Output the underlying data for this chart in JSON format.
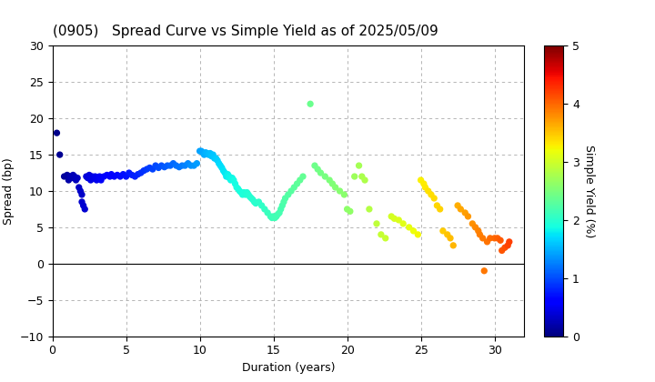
{
  "title": "(0905)   Spread Curve vs Simple Yield as of 2025/05/09",
  "xlabel": "Duration (years)",
  "ylabel": "Spread (bp)",
  "colorbar_label": "Simple Yield (%)",
  "xlim": [
    0,
    32
  ],
  "ylim": [
    -10,
    30
  ],
  "yticks": [
    -10,
    -5,
    0,
    5,
    10,
    15,
    20,
    25,
    30
  ],
  "xticks": [
    0,
    5,
    10,
    15,
    20,
    25,
    30
  ],
  "colorbar_ticks": [
    0,
    1,
    2,
    3,
    4,
    5
  ],
  "colormap": "jet",
  "color_vmin": 0,
  "color_vmax": 5,
  "points": [
    [
      0.3,
      18.0,
      0.05
    ],
    [
      0.5,
      15.0,
      0.08
    ],
    [
      0.8,
      12.0,
      0.12
    ],
    [
      1.0,
      12.2,
      0.15
    ],
    [
      1.1,
      11.5,
      0.18
    ],
    [
      1.2,
      12.0,
      0.2
    ],
    [
      1.3,
      11.8,
      0.22
    ],
    [
      1.4,
      12.2,
      0.24
    ],
    [
      1.5,
      12.0,
      0.25
    ],
    [
      1.6,
      11.5,
      0.27
    ],
    [
      1.7,
      11.8,
      0.28
    ],
    [
      1.8,
      10.5,
      0.3
    ],
    [
      1.9,
      10.0,
      0.32
    ],
    [
      2.0,
      9.5,
      0.33
    ],
    [
      2.0,
      8.5,
      0.35
    ],
    [
      2.1,
      8.0,
      0.36
    ],
    [
      2.2,
      7.5,
      0.37
    ],
    [
      2.3,
      12.0,
      0.38
    ],
    [
      2.4,
      11.8,
      0.4
    ],
    [
      2.5,
      12.2,
      0.42
    ],
    [
      2.6,
      11.5,
      0.43
    ],
    [
      2.7,
      12.0,
      0.44
    ],
    [
      2.8,
      11.8,
      0.46
    ],
    [
      2.9,
      12.0,
      0.47
    ],
    [
      3.0,
      11.5,
      0.48
    ],
    [
      3.1,
      11.8,
      0.5
    ],
    [
      3.2,
      12.0,
      0.52
    ],
    [
      3.3,
      11.5,
      0.53
    ],
    [
      3.5,
      12.0,
      0.55
    ],
    [
      3.7,
      12.2,
      0.57
    ],
    [
      3.9,
      12.0,
      0.6
    ],
    [
      4.0,
      12.3,
      0.62
    ],
    [
      4.2,
      12.0,
      0.64
    ],
    [
      4.4,
      12.2,
      0.66
    ],
    [
      4.6,
      12.0,
      0.68
    ],
    [
      4.8,
      12.3,
      0.7
    ],
    [
      5.0,
      12.0,
      0.72
    ],
    [
      5.2,
      12.5,
      0.75
    ],
    [
      5.4,
      12.2,
      0.77
    ],
    [
      5.6,
      12.0,
      0.8
    ],
    [
      5.8,
      12.3,
      0.82
    ],
    [
      6.0,
      12.5,
      0.85
    ],
    [
      6.2,
      12.8,
      0.87
    ],
    [
      6.4,
      13.0,
      0.9
    ],
    [
      6.6,
      13.2,
      0.93
    ],
    [
      6.8,
      13.0,
      0.95
    ],
    [
      7.0,
      13.5,
      0.98
    ],
    [
      7.2,
      13.2,
      1.0
    ],
    [
      7.4,
      13.5,
      1.03
    ],
    [
      7.6,
      13.3,
      1.06
    ],
    [
      7.8,
      13.5,
      1.09
    ],
    [
      8.0,
      13.5,
      1.12
    ],
    [
      8.2,
      13.8,
      1.15
    ],
    [
      8.4,
      13.5,
      1.18
    ],
    [
      8.6,
      13.3,
      1.2
    ],
    [
      8.8,
      13.5,
      1.23
    ],
    [
      9.0,
      13.5,
      1.26
    ],
    [
      9.2,
      13.8,
      1.3
    ],
    [
      9.4,
      13.5,
      1.33
    ],
    [
      9.6,
      13.5,
      1.36
    ],
    [
      9.8,
      13.8,
      1.39
    ],
    [
      10.0,
      15.5,
      1.42
    ],
    [
      10.1,
      15.5,
      1.44
    ],
    [
      10.2,
      15.3,
      1.46
    ],
    [
      10.3,
      15.0,
      1.48
    ],
    [
      10.4,
      15.3,
      1.5
    ],
    [
      10.5,
      15.2,
      1.52
    ],
    [
      10.6,
      15.0,
      1.54
    ],
    [
      10.7,
      15.2,
      1.56
    ],
    [
      10.8,
      14.8,
      1.58
    ],
    [
      10.9,
      15.0,
      1.6
    ],
    [
      11.0,
      14.5,
      1.62
    ],
    [
      11.1,
      14.5,
      1.64
    ],
    [
      11.2,
      14.2,
      1.66
    ],
    [
      11.3,
      13.8,
      1.68
    ],
    [
      11.4,
      13.5,
      1.7
    ],
    [
      11.5,
      13.2,
      1.72
    ],
    [
      11.6,
      12.8,
      1.74
    ],
    [
      11.7,
      12.5,
      1.76
    ],
    [
      11.8,
      12.0,
      1.78
    ],
    [
      11.9,
      12.3,
      1.8
    ],
    [
      12.0,
      12.0,
      1.82
    ],
    [
      12.0,
      11.8,
      1.83
    ],
    [
      12.1,
      11.5,
      1.84
    ],
    [
      12.2,
      11.8,
      1.85
    ],
    [
      12.3,
      11.5,
      1.86
    ],
    [
      12.4,
      11.0,
      1.87
    ],
    [
      12.5,
      10.5,
      1.88
    ],
    [
      12.6,
      10.3,
      1.89
    ],
    [
      12.7,
      10.0,
      1.9
    ],
    [
      12.8,
      9.8,
      1.91
    ],
    [
      12.9,
      9.5,
      1.92
    ],
    [
      13.0,
      9.8,
      1.93
    ],
    [
      13.1,
      9.5,
      1.94
    ],
    [
      13.2,
      9.8,
      1.95
    ],
    [
      13.3,
      9.5,
      1.96
    ],
    [
      13.4,
      9.2,
      1.97
    ],
    [
      13.5,
      9.0,
      1.98
    ],
    [
      13.6,
      8.8,
      1.99
    ],
    [
      13.7,
      8.5,
      2.0
    ],
    [
      13.8,
      8.3,
      2.01
    ],
    [
      14.0,
      8.5,
      2.03
    ],
    [
      14.2,
      8.0,
      2.05
    ],
    [
      14.4,
      7.5,
      2.07
    ],
    [
      14.6,
      7.0,
      2.09
    ],
    [
      14.8,
      6.5,
      2.11
    ],
    [
      14.9,
      6.3,
      2.12
    ],
    [
      15.0,
      6.5,
      2.13
    ],
    [
      15.1,
      6.3,
      2.14
    ],
    [
      15.2,
      6.5,
      2.15
    ],
    [
      15.3,
      6.8,
      2.16
    ],
    [
      15.4,
      7.0,
      2.17
    ],
    [
      15.5,
      7.5,
      2.18
    ],
    [
      15.6,
      8.0,
      2.2
    ],
    [
      15.7,
      8.5,
      2.22
    ],
    [
      15.8,
      9.0,
      2.24
    ],
    [
      16.0,
      9.5,
      2.26
    ],
    [
      16.2,
      10.0,
      2.28
    ],
    [
      16.4,
      10.5,
      2.3
    ],
    [
      16.6,
      11.0,
      2.32
    ],
    [
      16.8,
      11.5,
      2.34
    ],
    [
      17.0,
      12.0,
      2.36
    ],
    [
      17.5,
      22.0,
      2.4
    ],
    [
      17.8,
      13.5,
      2.42
    ],
    [
      18.0,
      13.0,
      2.44
    ],
    [
      18.2,
      12.5,
      2.46
    ],
    [
      18.5,
      12.0,
      2.48
    ],
    [
      18.8,
      11.5,
      2.5
    ],
    [
      19.0,
      11.0,
      2.52
    ],
    [
      19.2,
      10.5,
      2.54
    ],
    [
      19.5,
      10.0,
      2.56
    ],
    [
      19.8,
      9.5,
      2.58
    ],
    [
      20.0,
      7.5,
      2.6
    ],
    [
      20.2,
      7.2,
      2.62
    ],
    [
      20.5,
      12.0,
      2.7
    ],
    [
      20.8,
      13.5,
      2.75
    ],
    [
      21.0,
      12.0,
      2.78
    ],
    [
      21.2,
      11.5,
      2.8
    ],
    [
      21.5,
      7.5,
      2.85
    ],
    [
      22.0,
      5.5,
      2.9
    ],
    [
      22.3,
      4.0,
      2.93
    ],
    [
      22.6,
      3.5,
      2.96
    ],
    [
      23.0,
      6.5,
      3.02
    ],
    [
      23.2,
      6.2,
      3.05
    ],
    [
      23.5,
      6.0,
      3.08
    ],
    [
      23.8,
      5.5,
      3.12
    ],
    [
      24.2,
      5.0,
      3.16
    ],
    [
      24.5,
      4.5,
      3.2
    ],
    [
      24.8,
      4.0,
      3.24
    ],
    [
      25.0,
      11.5,
      3.28
    ],
    [
      25.2,
      11.0,
      3.3
    ],
    [
      25.3,
      10.5,
      3.32
    ],
    [
      25.5,
      10.0,
      3.34
    ],
    [
      25.7,
      9.5,
      3.36
    ],
    [
      25.9,
      9.0,
      3.38
    ],
    [
      26.1,
      8.0,
      3.4
    ],
    [
      26.3,
      7.5,
      3.42
    ],
    [
      26.5,
      4.5,
      3.46
    ],
    [
      26.8,
      4.0,
      3.5
    ],
    [
      27.0,
      3.5,
      3.54
    ],
    [
      27.2,
      2.5,
      3.58
    ],
    [
      27.5,
      8.0,
      3.62
    ],
    [
      27.7,
      7.5,
      3.66
    ],
    [
      28.0,
      7.0,
      3.7
    ],
    [
      28.2,
      6.5,
      3.74
    ],
    [
      28.5,
      5.5,
      3.78
    ],
    [
      28.7,
      5.0,
      3.82
    ],
    [
      28.9,
      4.5,
      3.86
    ],
    [
      29.0,
      4.0,
      3.88
    ],
    [
      29.2,
      3.5,
      3.9
    ],
    [
      29.3,
      -1.0,
      3.92
    ],
    [
      29.5,
      3.0,
      3.94
    ],
    [
      29.7,
      3.5,
      3.97
    ],
    [
      30.0,
      3.5,
      4.0
    ],
    [
      30.2,
      3.5,
      4.04
    ],
    [
      30.4,
      3.2,
      4.08
    ],
    [
      30.5,
      1.8,
      4.1
    ],
    [
      30.7,
      2.2,
      4.14
    ],
    [
      30.9,
      2.5,
      4.18
    ],
    [
      31.0,
      3.0,
      4.2
    ]
  ],
  "marker_size": 18,
  "title_fontsize": 11,
  "axis_fontsize": 9,
  "colorbar_fontsize": 9,
  "background_color": "#ffffff",
  "grid_color": "#aaaaaa",
  "grid_linestyle": "--"
}
